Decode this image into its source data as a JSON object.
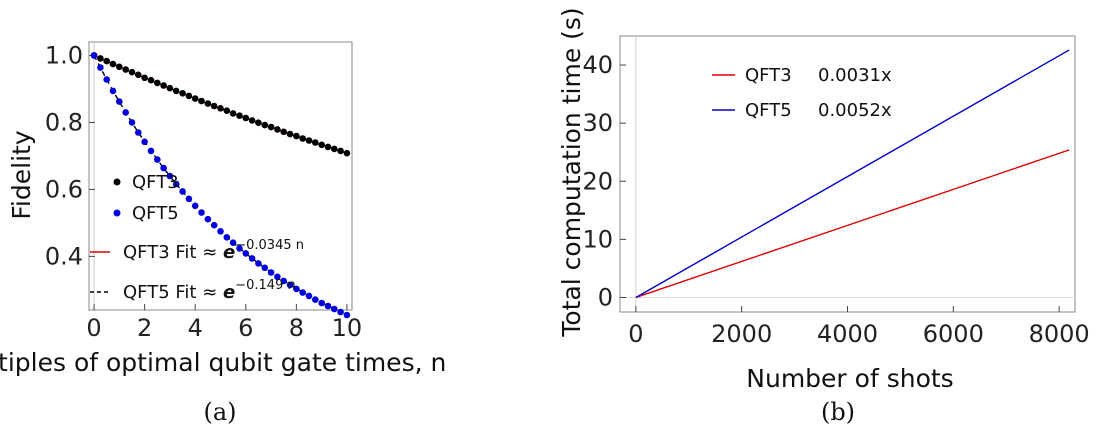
{
  "chart_data": [
    {
      "panel": "a",
      "caption": "(a)",
      "type": "scatter",
      "xlabel": "Multiples of optimal qubit gate times, n",
      "ylabel": "Fidelity",
      "xlim": [
        -0.2,
        10.2
      ],
      "ylim": [
        0.24,
        1.04
      ],
      "xticks": [
        "0",
        "2",
        "4",
        "6",
        "8",
        "10"
      ],
      "yticks": [
        "0.4",
        "0.6",
        "0.8",
        "1.0"
      ],
      "x": [
        0,
        0.25,
        0.5,
        0.75,
        1,
        1.25,
        1.5,
        1.75,
        2,
        2.25,
        2.5,
        2.75,
        3,
        3.25,
        3.5,
        3.75,
        4,
        4.25,
        4.5,
        4.75,
        5,
        5.25,
        5.5,
        5.75,
        6,
        6.25,
        6.5,
        6.75,
        7,
        7.25,
        7.5,
        7.75,
        8,
        8.25,
        8.5,
        8.75,
        9,
        9.25,
        9.5,
        9.75,
        10
      ],
      "series": [
        {
          "name": "QFT3",
          "color": "#000000",
          "marker": "dot",
          "values": [
            1.0,
            0.991,
            0.983,
            0.974,
            0.966,
            0.958,
            0.95,
            0.942,
            0.933,
            0.926,
            0.918,
            0.91,
            0.902,
            0.894,
            0.887,
            0.879,
            0.871,
            0.864,
            0.856,
            0.849,
            0.842,
            0.835,
            0.827,
            0.82,
            0.813,
            0.806,
            0.799,
            0.792,
            0.786,
            0.779,
            0.772,
            0.765,
            0.759,
            0.752,
            0.746,
            0.74,
            0.733,
            0.727,
            0.721,
            0.715,
            0.708
          ]
        },
        {
          "name": "QFT5",
          "color": "#0000dd",
          "marker": "dot",
          "values": [
            1.0,
            0.964,
            0.928,
            0.894,
            0.862,
            0.83,
            0.8,
            0.77,
            0.742,
            0.715,
            0.689,
            0.664,
            0.64,
            0.616,
            0.594,
            0.572,
            0.551,
            0.531,
            0.511,
            0.493,
            0.475,
            0.457,
            0.441,
            0.424,
            0.409,
            0.394,
            0.379,
            0.366,
            0.352,
            0.339,
            0.327,
            0.315,
            0.303,
            0.292,
            0.282,
            0.271,
            0.261,
            0.252,
            0.243,
            0.234,
            0.225
          ]
        }
      ],
      "fits": [
        {
          "name": "QFT3 Fit ≈ ",
          "base": "e",
          "exponent": "−0.0345 n",
          "rate": -0.0345,
          "color": "#e00000",
          "style": "solid"
        },
        {
          "name": "QFT5 Fit ≈ ",
          "base": "e",
          "exponent": "−0.149 n",
          "rate": -0.149,
          "color": "#000000",
          "style": "dashed"
        }
      ],
      "legend": "left",
      "grid": false
    },
    {
      "panel": "b",
      "caption": "(b)",
      "type": "line",
      "xlabel": "Number of shots",
      "ylabel": "Total computation time (s)",
      "xlim": [
        -300,
        8300
      ],
      "ylim": [
        -2.5,
        45
      ],
      "xticks": [
        "0",
        "2000",
        "4000",
        "6000",
        "8000"
      ],
      "yticks": [
        "0",
        "10",
        "20",
        "30",
        "40"
      ],
      "series": [
        {
          "name": "QFT3",
          "slope_label": "0.0031x",
          "slope": 0.0031,
          "color": "#e00000",
          "x": [
            0,
            8192
          ],
          "values": [
            0,
            25.4
          ]
        },
        {
          "name": "QFT5",
          "slope_label": "0.0052x",
          "slope": 0.0052,
          "color": "#0000cc",
          "x": [
            0,
            8192
          ],
          "values": [
            0,
            42.6
          ]
        }
      ],
      "legend": "top-left",
      "grid": false
    }
  ]
}
